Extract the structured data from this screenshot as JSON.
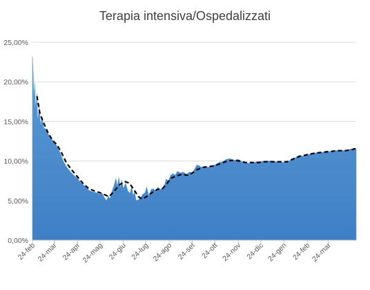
{
  "chart_data": {
    "type": "area",
    "title": "Terapia intensiva/Ospedalizzati",
    "xlabel": "",
    "ylabel": "",
    "ylim": [
      0,
      25
    ],
    "y_ticks": [
      0,
      5,
      10,
      15,
      20,
      25
    ],
    "y_tick_labels": [
      "0,00%",
      "5,00%",
      "10,00%",
      "15,00%",
      "20,00%",
      "25,00%"
    ],
    "x_start": "2020-02-24",
    "x_end": "2021-04-30",
    "x_tick_dates": [
      "2020-02-24",
      "2020-03-24",
      "2020-04-24",
      "2020-05-24",
      "2020-06-24",
      "2020-07-24",
      "2020-08-24",
      "2020-09-24",
      "2020-10-24",
      "2020-11-24",
      "2020-12-24",
      "2021-01-24",
      "2021-02-24",
      "2021-03-24"
    ],
    "x_tick_labels": [
      "24-feb",
      "24-mar",
      "24-apr",
      "24-mag",
      "24-giu",
      "24-lug",
      "24-ago",
      "24-set",
      "24-ott",
      "24-nov",
      "24-dic",
      "24-gen",
      "24-feb",
      "24-mar"
    ],
    "grid": true,
    "legend": "none",
    "colors": {
      "area": "#4a8ad0",
      "area_top": "#5b9bd5",
      "trend": "#000000"
    },
    "series": [
      {
        "type": "area",
        "points": [
          [
            "2020-02-24",
            23.2
          ],
          [
            "2020-02-25",
            21.0
          ],
          [
            "2020-02-26",
            17.5
          ],
          [
            "2020-02-27",
            19.8
          ],
          [
            "2020-02-28",
            16.5
          ],
          [
            "2020-03-01",
            18.5
          ],
          [
            "2020-03-02",
            15.0
          ],
          [
            "2020-03-04",
            16.8
          ],
          [
            "2020-03-06",
            14.5
          ],
          [
            "2020-03-08",
            15.5
          ],
          [
            "2020-03-10",
            14.2
          ],
          [
            "2020-03-13",
            14.0
          ],
          [
            "2020-03-16",
            13.4
          ],
          [
            "2020-03-20",
            12.8
          ],
          [
            "2020-03-24",
            12.4
          ],
          [
            "2020-03-28",
            11.8
          ],
          [
            "2020-04-01",
            11.0
          ],
          [
            "2020-04-05",
            10.0
          ],
          [
            "2020-04-09",
            9.3
          ],
          [
            "2020-04-14",
            8.7
          ],
          [
            "2020-04-19",
            8.2
          ],
          [
            "2020-04-24",
            7.8
          ],
          [
            "2020-04-29",
            7.2
          ],
          [
            "2020-05-04",
            6.8
          ],
          [
            "2020-05-09",
            6.3
          ],
          [
            "2020-05-14",
            6.1
          ],
          [
            "2020-05-19",
            6.0
          ],
          [
            "2020-05-24",
            5.8
          ],
          [
            "2020-05-27",
            5.9
          ],
          [
            "2020-05-30",
            5.3
          ],
          [
            "2020-06-02",
            5.0
          ],
          [
            "2020-06-04",
            5.6
          ],
          [
            "2020-06-06",
            5.2
          ],
          [
            "2020-06-09",
            6.2
          ],
          [
            "2020-06-12",
            7.0
          ],
          [
            "2020-06-14",
            7.8
          ],
          [
            "2020-06-16",
            6.8
          ],
          [
            "2020-06-18",
            7.9
          ],
          [
            "2020-06-20",
            6.6
          ],
          [
            "2020-06-22",
            7.6
          ],
          [
            "2020-06-24",
            6.5
          ],
          [
            "2020-06-27",
            7.2
          ],
          [
            "2020-06-30",
            6.2
          ],
          [
            "2020-07-03",
            5.9
          ],
          [
            "2020-07-05",
            6.8
          ],
          [
            "2020-07-07",
            5.6
          ],
          [
            "2020-07-09",
            6.1
          ],
          [
            "2020-07-11",
            5.0
          ],
          [
            "2020-07-14",
            5.1
          ],
          [
            "2020-07-17",
            5.4
          ],
          [
            "2020-07-20",
            5.8
          ],
          [
            "2020-07-23",
            6.0
          ],
          [
            "2020-07-25",
            6.7
          ],
          [
            "2020-07-28",
            5.6
          ],
          [
            "2020-07-31",
            6.4
          ],
          [
            "2020-08-03",
            6.5
          ],
          [
            "2020-08-06",
            6.2
          ],
          [
            "2020-08-09",
            6.7
          ],
          [
            "2020-08-12",
            6.4
          ],
          [
            "2020-08-15",
            6.6
          ],
          [
            "2020-08-18",
            7.0
          ],
          [
            "2020-08-20",
            7.7
          ],
          [
            "2020-08-23",
            7.5
          ],
          [
            "2020-08-26",
            8.2
          ],
          [
            "2020-08-29",
            8.4
          ],
          [
            "2020-09-01",
            8.2
          ],
          [
            "2020-09-04",
            8.7
          ],
          [
            "2020-09-08",
            8.5
          ],
          [
            "2020-09-12",
            8.6
          ],
          [
            "2020-09-16",
            8.3
          ],
          [
            "2020-09-20",
            8.6
          ],
          [
            "2020-09-24",
            8.5
          ],
          [
            "2020-09-27",
            9.0
          ],
          [
            "2020-09-30",
            9.5
          ],
          [
            "2020-10-03",
            9.4
          ],
          [
            "2020-10-06",
            9.2
          ],
          [
            "2020-10-10",
            9.3
          ],
          [
            "2020-10-15",
            9.2
          ],
          [
            "2020-10-20",
            9.4
          ],
          [
            "2020-10-24",
            9.5
          ],
          [
            "2020-10-29",
            9.8
          ],
          [
            "2020-11-03",
            9.9
          ],
          [
            "2020-11-08",
            10.2
          ],
          [
            "2020-11-13",
            10.3
          ],
          [
            "2020-11-18",
            10.1
          ],
          [
            "2020-11-24",
            10.2
          ],
          [
            "2020-11-29",
            9.9
          ],
          [
            "2020-12-04",
            9.8
          ],
          [
            "2020-12-09",
            9.7
          ],
          [
            "2020-12-14",
            9.8
          ],
          [
            "2020-12-19",
            9.9
          ],
          [
            "2020-12-24",
            9.9
          ],
          [
            "2020-12-29",
            10.0
          ],
          [
            "2021-01-03",
            10.0
          ],
          [
            "2021-01-08",
            10.0
          ],
          [
            "2021-01-13",
            9.9
          ],
          [
            "2021-01-18",
            9.9
          ],
          [
            "2021-01-24",
            9.8
          ],
          [
            "2021-01-29",
            9.9
          ],
          [
            "2021-02-03",
            10.2
          ],
          [
            "2021-02-08",
            10.4
          ],
          [
            "2021-02-13",
            10.7
          ],
          [
            "2021-02-18",
            10.6
          ],
          [
            "2021-02-24",
            10.8
          ],
          [
            "2021-03-01",
            10.9
          ],
          [
            "2021-03-06",
            11.0
          ],
          [
            "2021-03-11",
            11.1
          ],
          [
            "2021-03-16",
            11.1
          ],
          [
            "2021-03-24",
            11.2
          ],
          [
            "2021-03-29",
            11.2
          ],
          [
            "2021-04-03",
            11.3
          ],
          [
            "2021-04-08",
            11.4
          ],
          [
            "2021-04-13",
            11.3
          ],
          [
            "2021-04-18",
            11.4
          ],
          [
            "2021-04-23",
            11.5
          ],
          [
            "2021-04-30",
            11.5
          ]
        ]
      },
      {
        "type": "line",
        "style": "dashed",
        "points": [
          [
            "2020-03-01",
            18.2
          ],
          [
            "2020-03-05",
            16.0
          ],
          [
            "2020-03-10",
            14.8
          ],
          [
            "2020-03-16",
            13.5
          ],
          [
            "2020-03-22",
            12.6
          ],
          [
            "2020-03-28",
            12.0
          ],
          [
            "2020-04-03",
            11.0
          ],
          [
            "2020-04-09",
            9.8
          ],
          [
            "2020-04-16",
            8.9
          ],
          [
            "2020-04-24",
            8.0
          ],
          [
            "2020-05-01",
            7.2
          ],
          [
            "2020-05-09",
            6.5
          ],
          [
            "2020-05-17",
            6.2
          ],
          [
            "2020-05-24",
            6.0
          ],
          [
            "2020-05-31",
            5.7
          ],
          [
            "2020-06-05",
            5.5
          ],
          [
            "2020-06-12",
            6.2
          ],
          [
            "2020-06-19",
            7.0
          ],
          [
            "2020-06-26",
            7.4
          ],
          [
            "2020-07-02",
            7.2
          ],
          [
            "2020-07-08",
            6.4
          ],
          [
            "2020-07-14",
            5.5
          ],
          [
            "2020-07-19",
            5.2
          ],
          [
            "2020-07-25",
            5.5
          ],
          [
            "2020-08-01",
            6.0
          ],
          [
            "2020-08-08",
            6.4
          ],
          [
            "2020-08-15",
            6.5
          ],
          [
            "2020-08-20",
            7.0
          ],
          [
            "2020-08-26",
            7.8
          ],
          [
            "2020-09-02",
            8.1
          ],
          [
            "2020-09-10",
            8.3
          ],
          [
            "2020-09-18",
            8.2
          ],
          [
            "2020-09-24",
            8.5
          ],
          [
            "2020-09-30",
            8.9
          ],
          [
            "2020-10-08",
            9.2
          ],
          [
            "2020-10-16",
            9.3
          ],
          [
            "2020-10-24",
            9.4
          ],
          [
            "2020-11-01",
            9.7
          ],
          [
            "2020-11-10",
            10.0
          ],
          [
            "2020-11-18",
            10.1
          ],
          [
            "2020-11-26",
            10.0
          ],
          [
            "2020-12-04",
            9.8
          ],
          [
            "2020-12-12",
            9.8
          ],
          [
            "2020-12-20",
            9.8
          ],
          [
            "2020-12-28",
            9.9
          ],
          [
            "2021-01-08",
            9.9
          ],
          [
            "2021-01-18",
            9.9
          ],
          [
            "2021-01-28",
            9.9
          ],
          [
            "2021-02-06",
            10.3
          ],
          [
            "2021-02-14",
            10.6
          ],
          [
            "2021-02-24",
            10.8
          ],
          [
            "2021-03-06",
            11.0
          ],
          [
            "2021-03-16",
            11.1
          ],
          [
            "2021-03-26",
            11.2
          ],
          [
            "2021-04-05",
            11.3
          ],
          [
            "2021-04-15",
            11.3
          ],
          [
            "2021-04-23",
            11.4
          ],
          [
            "2021-04-30",
            11.6
          ]
        ]
      }
    ]
  }
}
